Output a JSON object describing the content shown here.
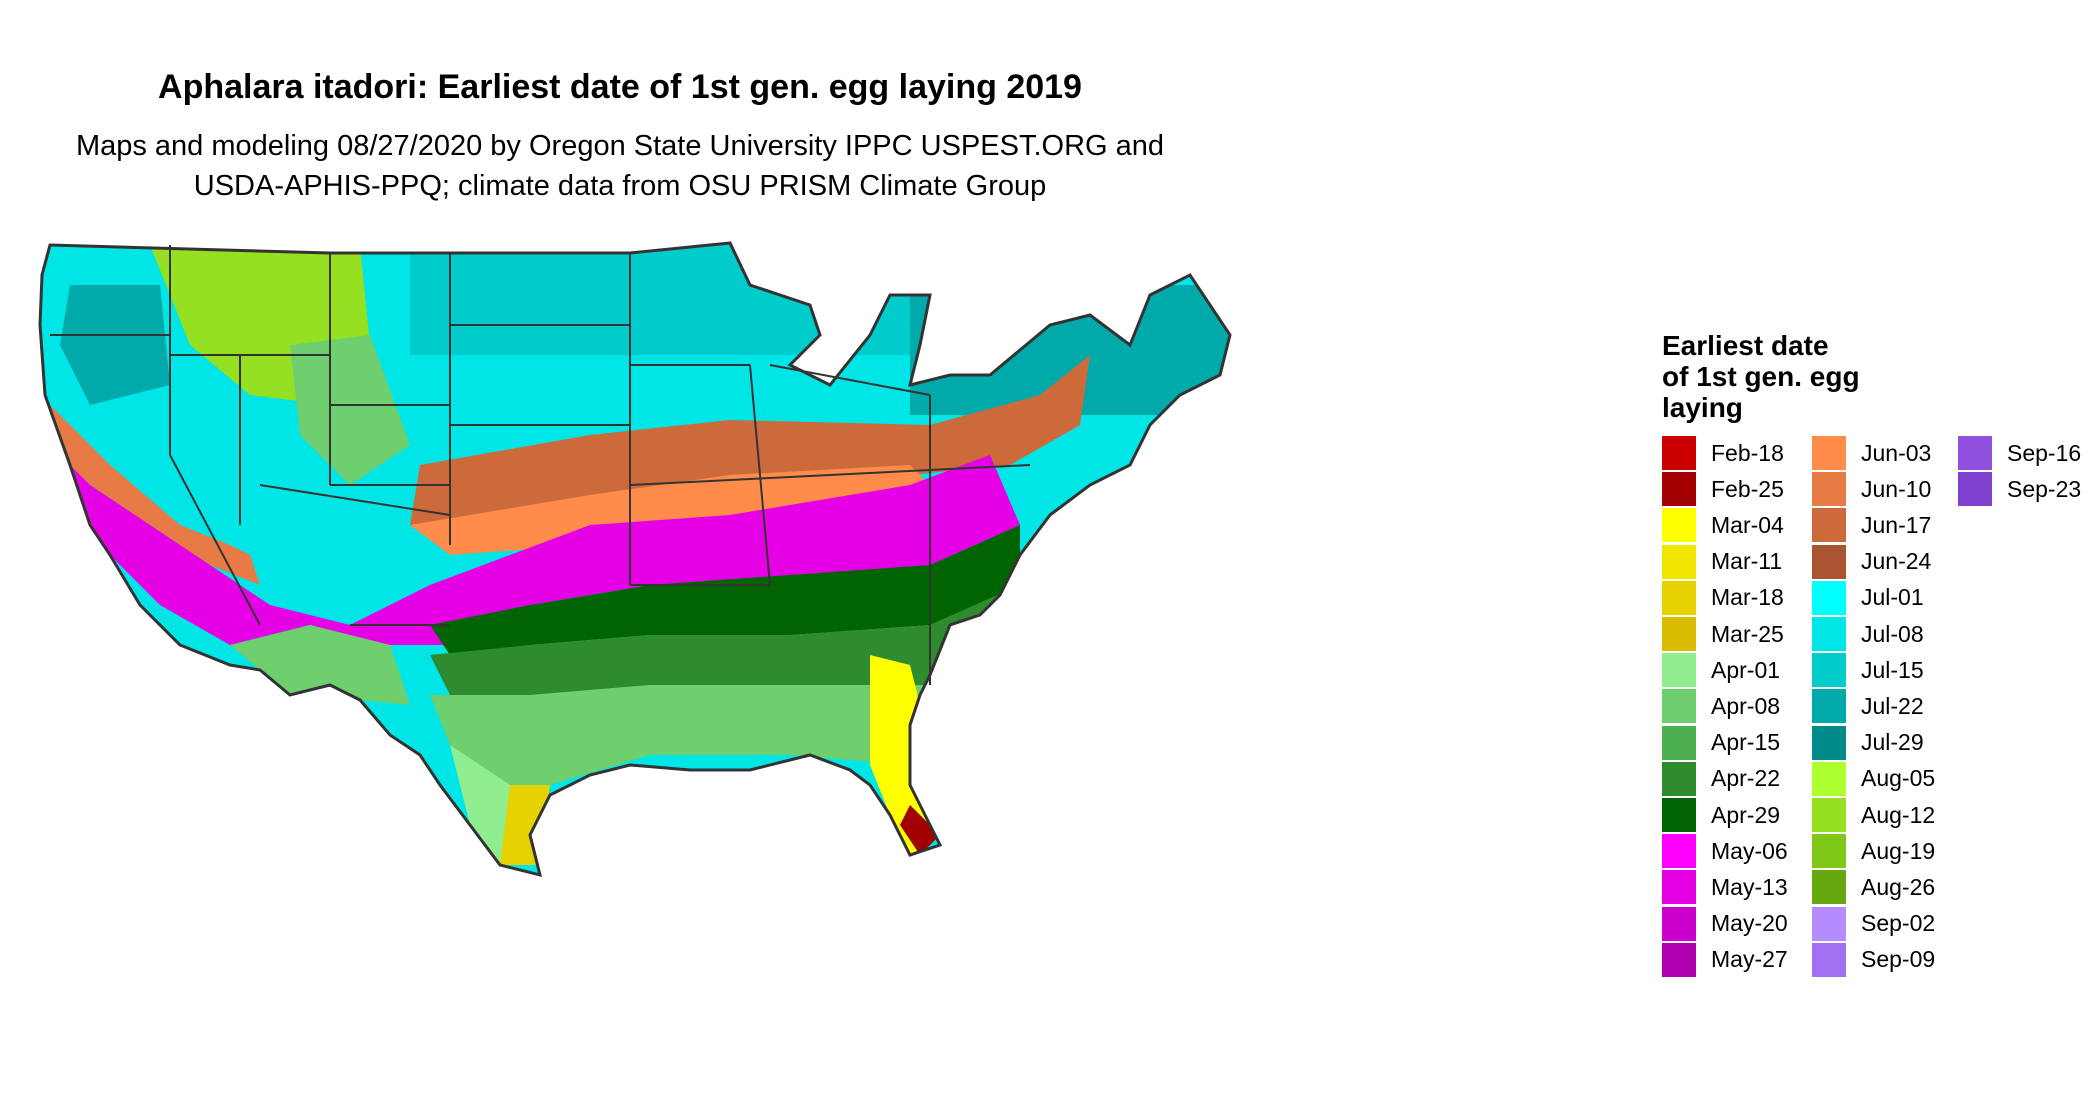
{
  "title": "Aphalara itadori: Earliest date of 1st gen. egg laying 2019",
  "subtitle_line1": "Maps and modeling 08/27/2020 by Oregon State University IPPC USPEST.ORG and",
  "subtitle_line2": "USDA-APHIS-PPQ; climate data from OSU PRISM Climate Group",
  "legend": {
    "title_line1": "Earliest date",
    "title_line2": "of 1st gen. egg",
    "title_line3": "laying",
    "columns": [
      [
        {
          "label": "Feb-18",
          "color": "#cc0000"
        },
        {
          "label": "Feb-25",
          "color": "#a30000"
        },
        {
          "label": "Mar-04",
          "color": "#ffff00"
        },
        {
          "label": "Mar-11",
          "color": "#f2e500"
        },
        {
          "label": "Mar-18",
          "color": "#e6d200"
        },
        {
          "label": "Mar-25",
          "color": "#d9bc00"
        },
        {
          "label": "Apr-01",
          "color": "#90ee90"
        },
        {
          "label": "Apr-08",
          "color": "#6fcf6f"
        },
        {
          "label": "Apr-15",
          "color": "#4caf50"
        },
        {
          "label": "Apr-22",
          "color": "#2e8b2e"
        },
        {
          "label": "Apr-29",
          "color": "#006400"
        },
        {
          "label": "May-06",
          "color": "#ff00ff"
        },
        {
          "label": "May-13",
          "color": "#e600e6"
        },
        {
          "label": "May-20",
          "color": "#cc00cc"
        },
        {
          "label": "May-27",
          "color": "#b000b0"
        }
      ],
      [
        {
          "label": "Jun-03",
          "color": "#ff8c4a"
        },
        {
          "label": "Jun-10",
          "color": "#e87a45"
        },
        {
          "label": "Jun-17",
          "color": "#cc6a3c"
        },
        {
          "label": "Jun-24",
          "color": "#a9542e"
        },
        {
          "label": "Jul-01",
          "color": "#00ffff"
        },
        {
          "label": "Jul-08",
          "color": "#00e5e5"
        },
        {
          "label": "Jul-15",
          "color": "#00cccc"
        },
        {
          "label": "Jul-22",
          "color": "#00aaaa"
        },
        {
          "label": "Jul-29",
          "color": "#008b8b"
        },
        {
          "label": "Aug-05",
          "color": "#adff2f"
        },
        {
          "label": "Aug-12",
          "color": "#95e020"
        },
        {
          "label": "Aug-19",
          "color": "#80c818"
        },
        {
          "label": "Aug-26",
          "color": "#66a80f"
        },
        {
          "label": "Sep-02",
          "color": "#b48cff"
        },
        {
          "label": "Sep-09",
          "color": "#a070f0"
        }
      ],
      [
        {
          "label": "Sep-16",
          "color": "#9050e0"
        },
        {
          "label": "Sep-23",
          "color": "#8040d0"
        }
      ]
    ]
  }
}
